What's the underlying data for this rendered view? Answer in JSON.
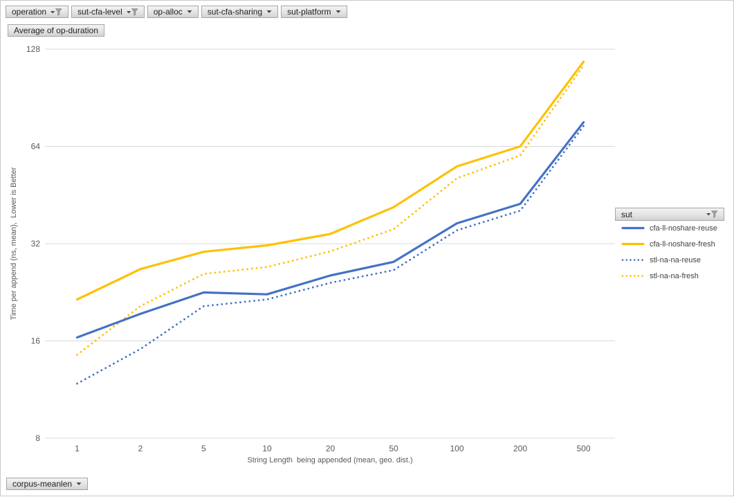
{
  "chrome": {
    "background": "#FFFFFF",
    "border_color": "#C9C9C9"
  },
  "filter_row": {
    "buttons": [
      {
        "label": "operation",
        "icon": "filter-funnel-icon",
        "has_active_filter": true
      },
      {
        "label": "sut-cfa-level",
        "icon": "filter-funnel-icon",
        "has_active_filter": true
      },
      {
        "label": "op-alloc",
        "icon": "dropdown-arrow-icon",
        "has_active_filter": false
      },
      {
        "label": "sut-cfa-sharing",
        "icon": "dropdown-arrow-icon",
        "has_active_filter": false
      },
      {
        "label": "sut-platform",
        "icon": "dropdown-arrow-icon",
        "has_active_filter": false
      }
    ]
  },
  "value_button": {
    "label": "Average of op-duration"
  },
  "legend": {
    "header_label": "sut",
    "header_icon": "filter-funnel-icon",
    "position": "right"
  },
  "axis_button": {
    "label": "corpus-meanlen",
    "icon": "dropdown-arrow-icon"
  },
  "chart_data": {
    "type": "line",
    "title": "",
    "xlabel": "String Length  being appended (mean, geo. dist.)",
    "ylabel": "Time per append (ns, mean),  Lower is Better",
    "categories": [
      "1",
      "2",
      "5",
      "10",
      "20",
      "50",
      "100",
      "200",
      "500"
    ],
    "y_axis": {
      "scale": "log2",
      "min": 8,
      "max": 128,
      "ticks": [
        128,
        64,
        32,
        16,
        8
      ]
    },
    "grid": "horizontal-only",
    "gridline_color": "#D9D9D9",
    "axis_text_color": "#595959",
    "legend_position": "right",
    "series": [
      {
        "name": "cfa-ll-noshare-reuse",
        "color": "#4472C4",
        "line_style": "solid",
        "values": [
          16.4,
          19.4,
          22.6,
          22.3,
          25.5,
          28.1,
          37.0,
          42.5,
          76.0
        ]
      },
      {
        "name": "cfa-ll-noshare-fresh",
        "color": "#FFC000",
        "line_style": "solid",
        "values": [
          21.5,
          26.7,
          30.2,
          31.6,
          34.3,
          41.5,
          55.5,
          64.0,
          117.0
        ]
      },
      {
        "name": "stl-na-na-reuse",
        "color": "#4472C4",
        "line_style": "dotted",
        "values": [
          11.8,
          15.1,
          20.5,
          21.5,
          24.2,
          26.5,
          35.2,
          40.5,
          74.0
        ]
      },
      {
        "name": "stl-na-na-fresh",
        "color": "#FFC000",
        "line_style": "dotted",
        "values": [
          14.5,
          20.5,
          25.8,
          27.1,
          30.3,
          35.5,
          51.0,
          60.0,
          114.0
        ]
      }
    ]
  }
}
